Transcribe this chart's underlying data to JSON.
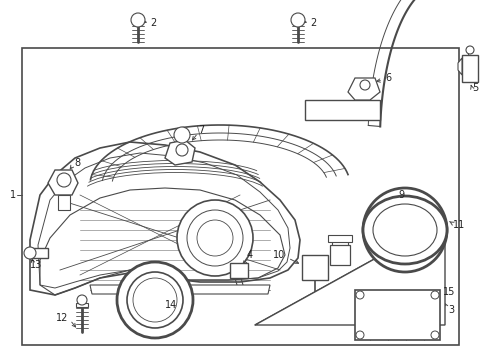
{
  "bg_color": "#ffffff",
  "line_color": "#4a4a4a",
  "label_color": "#222222",
  "fig_width": 4.89,
  "fig_height": 3.6,
  "dpi": 100
}
